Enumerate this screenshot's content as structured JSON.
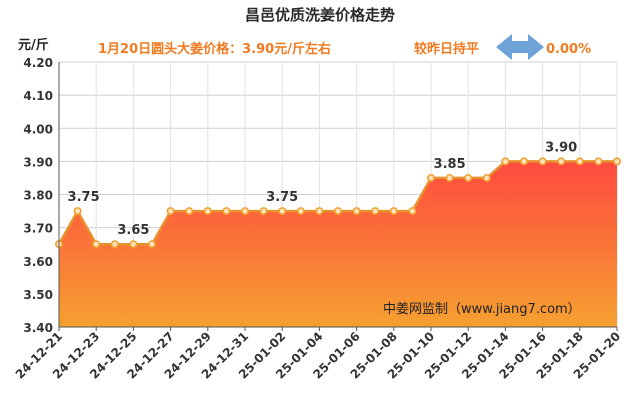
{
  "chart_data": {
    "type": "area",
    "title": "昌邑优质洗姜价格走势",
    "ylabel": "元/斤",
    "info_text": "1月20日圆头大姜价格：3.90元/斤左右",
    "compare_text": "较昨日持平",
    "compare_value": "0.00%",
    "watermark": "中姜网监制（www.jiang7.com）",
    "ylim": [
      3.4,
      4.2
    ],
    "yticks": [
      "3.40",
      "3.50",
      "3.60",
      "3.70",
      "3.80",
      "3.90",
      "4.00",
      "4.10",
      "4.20"
    ],
    "x": [
      "24-12-21",
      "24-12-22",
      "24-12-23",
      "24-12-24",
      "24-12-25",
      "24-12-26",
      "24-12-27",
      "24-12-28",
      "24-12-29",
      "24-12-30",
      "24-12-31",
      "25-01-01",
      "25-01-02",
      "25-01-03",
      "25-01-04",
      "25-01-05",
      "25-01-06",
      "25-01-07",
      "25-01-08",
      "25-01-09",
      "25-01-10",
      "25-01-11",
      "25-01-12",
      "25-01-13",
      "25-01-14",
      "25-01-15",
      "25-01-16",
      "25-01-17",
      "25-01-18",
      "25-01-19",
      "25-01-20"
    ],
    "xticks": [
      "24-12-21",
      "24-12-23",
      "24-12-25",
      "24-12-27",
      "24-12-29",
      "24-12-31",
      "25-01-02",
      "25-01-04",
      "25-01-06",
      "25-01-08",
      "25-01-10",
      "25-01-12",
      "25-01-14",
      "25-01-16",
      "25-01-18",
      "25-01-20"
    ],
    "values": [
      3.65,
      3.75,
      3.65,
      3.65,
      3.65,
      3.65,
      3.75,
      3.75,
      3.75,
      3.75,
      3.75,
      3.75,
      3.75,
      3.75,
      3.75,
      3.75,
      3.75,
      3.75,
      3.75,
      3.75,
      3.85,
      3.85,
      3.85,
      3.85,
      3.9,
      3.9,
      3.9,
      3.9,
      3.9,
      3.9,
      3.9
    ],
    "data_labels": [
      {
        "x": "24-12-22",
        "text": "3.75"
      },
      {
        "x": "24-12-25",
        "text": "3.65"
      },
      {
        "x": "25-01-02",
        "text": "3.75"
      },
      {
        "x": "25-01-11",
        "text": "3.85"
      },
      {
        "x": "25-01-17",
        "text": "3.90"
      }
    ],
    "grid": true,
    "colors": {
      "line": "#e8912c",
      "marker": "#f0a030",
      "fill_top": "#ff4a3f",
      "fill_bottom": "#f5a030",
      "accent": "#f07b20",
      "arrow": "#6fa3d8"
    }
  }
}
